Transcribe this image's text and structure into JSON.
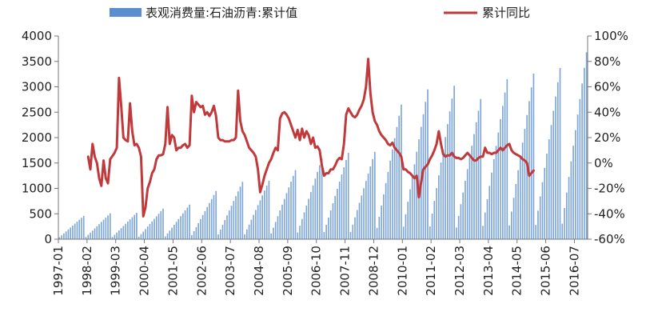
{
  "chart_data": {
    "type": "bar+line",
    "legend": {
      "placement": "top",
      "bar_label": "表观消费量:石油沥青:累计值",
      "line_label": "累计同比"
    },
    "colors": {
      "bar": "#7ea6d8",
      "bar_legend": "#5b8ed0",
      "line": "#c0393b",
      "axis": "#777777"
    },
    "left_axis": {
      "min": 0,
      "max": 4000,
      "ticks": [
        "0",
        "500",
        "1000",
        "1500",
        "2000",
        "2500",
        "3000",
        "3500",
        "4000"
      ]
    },
    "right_axis": {
      "min": -60,
      "max": 100,
      "ticks": [
        "-60%",
        "-40%",
        "-20%",
        "0%",
        "20%",
        "40%",
        "60%",
        "80%",
        "100%"
      ]
    },
    "x_tick_labels": [
      "1997-01",
      "1998-02",
      "1999-03",
      "2000-04",
      "2001-05",
      "2002-06",
      "2003-07",
      "2004-08",
      "2005-09",
      "2006-10",
      "2007-11",
      "2008-12",
      "2010-01",
      "2011-02",
      "2012-03",
      "2013-04",
      "2014-05",
      "2015-06",
      "2016-07"
    ],
    "bars": {
      "start": "1997-01",
      "end": "2016-12",
      "year_end_cumulative": {
        "1997": 460,
        "1998": 510,
        "1999": 520,
        "2000": 600,
        "2001": 680,
        "2002": 950,
        "2003": 1130,
        "2004": 1150,
        "2005": 1360,
        "2006": 1590,
        "2007": 1700,
        "2008": 1720,
        "2009": 2650,
        "2010": 2950,
        "2011": 3020,
        "2012": 2760,
        "2013": 3150,
        "2014": 3260,
        "2015": 3370,
        "2016": 3680
      }
    },
    "line_series": [
      [
        "1998-02",
        5
      ],
      [
        "1998-03",
        -5
      ],
      [
        "1998-04",
        15
      ],
      [
        "1998-05",
        5
      ],
      [
        "1998-06",
        0
      ],
      [
        "1998-07",
        -12
      ],
      [
        "1998-08",
        -18
      ],
      [
        "1998-09",
        2
      ],
      [
        "1998-10",
        -12
      ],
      [
        "1998-11",
        -16
      ],
      [
        "1998-12",
        3
      ],
      [
        "1999-02",
        8
      ],
      [
        "1999-03",
        12
      ],
      [
        "1999-04",
        67
      ],
      [
        "1999-05",
        45
      ],
      [
        "1999-06",
        20
      ],
      [
        "1999-07",
        18
      ],
      [
        "1999-08",
        17
      ],
      [
        "1999-09",
        47
      ],
      [
        "1999-10",
        25
      ],
      [
        "1999-11",
        14
      ],
      [
        "1999-12",
        15
      ],
      [
        "2000-01",
        12
      ],
      [
        "2000-02",
        5
      ],
      [
        "2000-03",
        -42
      ],
      [
        "2000-04",
        -35
      ],
      [
        "2000-05",
        -20
      ],
      [
        "2000-06",
        -15
      ],
      [
        "2000-07",
        -8
      ],
      [
        "2000-08",
        -5
      ],
      [
        "2000-09",
        3
      ],
      [
        "2000-10",
        6
      ],
      [
        "2000-11",
        6
      ],
      [
        "2000-12",
        7
      ],
      [
        "2001-01",
        15
      ],
      [
        "2001-02",
        44
      ],
      [
        "2001-03",
        15
      ],
      [
        "2001-04",
        22
      ],
      [
        "2001-05",
        20
      ],
      [
        "2001-06",
        10
      ],
      [
        "2001-07",
        12
      ],
      [
        "2001-08",
        12
      ],
      [
        "2001-09",
        14
      ],
      [
        "2001-10",
        15
      ],
      [
        "2001-11",
        12
      ],
      [
        "2001-12",
        14
      ],
      [
        "2002-01",
        53
      ],
      [
        "2002-02",
        40
      ],
      [
        "2002-03",
        48
      ],
      [
        "2002-04",
        46
      ],
      [
        "2002-05",
        44
      ],
      [
        "2002-06",
        45
      ],
      [
        "2002-07",
        38
      ],
      [
        "2002-08",
        40
      ],
      [
        "2002-09",
        37
      ],
      [
        "2002-10",
        40
      ],
      [
        "2002-11",
        45
      ],
      [
        "2002-12",
        37
      ],
      [
        "2003-01",
        20
      ],
      [
        "2003-02",
        18
      ],
      [
        "2003-03",
        18
      ],
      [
        "2003-04",
        17
      ],
      [
        "2003-05",
        17
      ],
      [
        "2003-06",
        17
      ],
      [
        "2003-07",
        18
      ],
      [
        "2003-08",
        18
      ],
      [
        "2003-09",
        20
      ],
      [
        "2003-10",
        57
      ],
      [
        "2003-11",
        33
      ],
      [
        "2003-12",
        25
      ],
      [
        "2004-01",
        22
      ],
      [
        "2004-02",
        17
      ],
      [
        "2004-03",
        12
      ],
      [
        "2004-04",
        10
      ],
      [
        "2004-05",
        8
      ],
      [
        "2004-06",
        5
      ],
      [
        "2004-07",
        -5
      ],
      [
        "2004-08",
        -23
      ],
      [
        "2004-09",
        -17
      ],
      [
        "2004-10",
        -10
      ],
      [
        "2004-11",
        -5
      ],
      [
        "2004-12",
        0
      ],
      [
        "2005-01",
        3
      ],
      [
        "2005-02",
        8
      ],
      [
        "2005-03",
        12
      ],
      [
        "2005-04",
        10
      ],
      [
        "2005-05",
        35
      ],
      [
        "2005-06",
        39
      ],
      [
        "2005-07",
        40
      ],
      [
        "2005-08",
        38
      ],
      [
        "2005-09",
        35
      ],
      [
        "2005-10",
        30
      ],
      [
        "2005-11",
        25
      ],
      [
        "2005-12",
        20
      ],
      [
        "2006-01",
        26
      ],
      [
        "2006-02",
        18
      ],
      [
        "2006-03",
        27
      ],
      [
        "2006-04",
        20
      ],
      [
        "2006-05",
        25
      ],
      [
        "2006-06",
        22
      ],
      [
        "2006-07",
        15
      ],
      [
        "2006-08",
        20
      ],
      [
        "2006-09",
        12
      ],
      [
        "2006-10",
        13
      ],
      [
        "2006-11",
        10
      ],
      [
        "2006-12",
        -2
      ],
      [
        "2007-01",
        -10
      ],
      [
        "2007-02",
        -8
      ],
      [
        "2007-03",
        -8
      ],
      [
        "2007-04",
        -5
      ],
      [
        "2007-05",
        -5
      ],
      [
        "2007-06",
        -2
      ],
      [
        "2007-07",
        2
      ],
      [
        "2007-08",
        4
      ],
      [
        "2007-09",
        3
      ],
      [
        "2007-10",
        15
      ],
      [
        "2007-11",
        38
      ],
      [
        "2007-12",
        43
      ],
      [
        "2008-01",
        40
      ],
      [
        "2008-02",
        37
      ],
      [
        "2008-03",
        36
      ],
      [
        "2008-04",
        38
      ],
      [
        "2008-05",
        42
      ],
      [
        "2008-06",
        45
      ],
      [
        "2008-07",
        50
      ],
      [
        "2008-08",
        60
      ],
      [
        "2008-09",
        82
      ],
      [
        "2008-10",
        55
      ],
      [
        "2008-11",
        40
      ],
      [
        "2008-12",
        33
      ],
      [
        "2009-01",
        30
      ],
      [
        "2009-02",
        25
      ],
      [
        "2009-03",
        22
      ],
      [
        "2009-04",
        20
      ],
      [
        "2009-05",
        18
      ],
      [
        "2009-06",
        15
      ],
      [
        "2009-07",
        14
      ],
      [
        "2009-08",
        16
      ],
      [
        "2009-09",
        12
      ],
      [
        "2009-10",
        10
      ],
      [
        "2009-11",
        8
      ],
      [
        "2009-12",
        5
      ],
      [
        "2010-01",
        -5
      ],
      [
        "2010-02",
        -5
      ],
      [
        "2010-03",
        -7
      ],
      [
        "2010-04",
        -8
      ],
      [
        "2010-05",
        -10
      ],
      [
        "2010-06",
        -12
      ],
      [
        "2010-07",
        -10
      ],
      [
        "2010-08",
        -27
      ],
      [
        "2010-09",
        -15
      ],
      [
        "2010-10",
        -5
      ],
      [
        "2010-11",
        -3
      ],
      [
        "2010-12",
        -1
      ],
      [
        "2011-01",
        3
      ],
      [
        "2011-02",
        6
      ],
      [
        "2011-03",
        10
      ],
      [
        "2011-04",
        15
      ],
      [
        "2011-05",
        25
      ],
      [
        "2011-06",
        15
      ],
      [
        "2011-07",
        7
      ],
      [
        "2011-08",
        5
      ],
      [
        "2011-09",
        6
      ],
      [
        "2011-10",
        6
      ],
      [
        "2011-11",
        8
      ],
      [
        "2011-12",
        5
      ],
      [
        "2012-01",
        4
      ],
      [
        "2012-02",
        4
      ],
      [
        "2012-03",
        3
      ],
      [
        "2012-04",
        4
      ],
      [
        "2012-05",
        6
      ],
      [
        "2012-06",
        8
      ],
      [
        "2012-07",
        6
      ],
      [
        "2012-08",
        4
      ],
      [
        "2012-09",
        2
      ],
      [
        "2012-10",
        2
      ],
      [
        "2012-11",
        4
      ],
      [
        "2012-12",
        5
      ],
      [
        "2013-01",
        5
      ],
      [
        "2013-02",
        12
      ],
      [
        "2013-03",
        8
      ],
      [
        "2013-04",
        8
      ],
      [
        "2013-05",
        7
      ],
      [
        "2013-06",
        8
      ],
      [
        "2013-07",
        8
      ],
      [
        "2013-08",
        10
      ],
      [
        "2013-09",
        12
      ],
      [
        "2013-10",
        10
      ],
      [
        "2013-11",
        12
      ],
      [
        "2013-12",
        14
      ],
      [
        "2014-01",
        15
      ],
      [
        "2014-02",
        10
      ],
      [
        "2014-03",
        8
      ],
      [
        "2014-04",
        7
      ],
      [
        "2014-05",
        6
      ],
      [
        "2014-06",
        5
      ],
      [
        "2014-07",
        3
      ],
      [
        "2014-08",
        2
      ],
      [
        "2014-09",
        0
      ],
      [
        "2014-10",
        -10
      ],
      [
        "2014-11",
        -8
      ],
      [
        "2014-12",
        -6
      ]
    ]
  }
}
